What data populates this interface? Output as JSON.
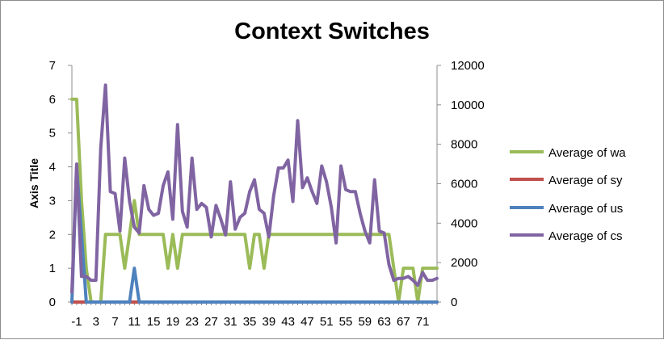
{
  "chart_data": {
    "type": "line",
    "title": "Context Switches",
    "ylabel": "Axis Title",
    "ylim": [
      0,
      7
    ],
    "y2lim": [
      0,
      12000
    ],
    "yticks": [
      "0",
      "1",
      "2",
      "3",
      "4",
      "5",
      "6",
      "7"
    ],
    "y2ticks": [
      "0",
      "2000",
      "4000",
      "6000",
      "8000",
      "10000",
      "12000"
    ],
    "xlim": [
      -2,
      74
    ],
    "xticks": [
      "-1",
      "3",
      "7",
      "11",
      "15",
      "19",
      "23",
      "27",
      "31",
      "35",
      "39",
      "43",
      "47",
      "51",
      "55",
      "59",
      "63",
      "67",
      "71"
    ],
    "legend_position": "right",
    "series": [
      {
        "name": "Average of wa",
        "color": "#9BBB59",
        "axis": "left",
        "x": [
          -2,
          -1,
          0,
          1,
          2,
          3,
          4,
          5,
          6,
          7,
          8,
          9,
          10,
          11,
          12,
          13,
          14,
          15,
          16,
          17,
          18,
          19,
          20,
          21,
          22,
          23,
          24,
          25,
          26,
          27,
          28,
          29,
          30,
          31,
          32,
          33,
          34,
          35,
          36,
          37,
          38,
          39,
          40,
          41,
          42,
          43,
          44,
          45,
          46,
          47,
          48,
          49,
          50,
          51,
          52,
          53,
          54,
          55,
          56,
          57,
          58,
          59,
          60,
          61,
          62,
          63,
          64,
          65,
          66,
          67,
          68,
          69,
          70,
          71,
          72,
          73,
          74
        ],
        "values": [
          6,
          6,
          3,
          1,
          0,
          0,
          0,
          2,
          2,
          2,
          2,
          1,
          2,
          3,
          2,
          2,
          2,
          2,
          2,
          2,
          1,
          2,
          1,
          2,
          2,
          2,
          2,
          2,
          2,
          2,
          2,
          2,
          2,
          2,
          2,
          2,
          2,
          1,
          2,
          2,
          1,
          2,
          2,
          2,
          2,
          2,
          2,
          2,
          2,
          2,
          2,
          2,
          2,
          2,
          2,
          2,
          2,
          2,
          2,
          2,
          2,
          2,
          2,
          2,
          2,
          2,
          2,
          1,
          0,
          1,
          1,
          1,
          0,
          1,
          1,
          1,
          1
        ]
      },
      {
        "name": "Average of sy",
        "color": "#C0504D",
        "axis": "left",
        "x": [
          -2,
          -1,
          0,
          1,
          2,
          3,
          4,
          5,
          6,
          7,
          8,
          9,
          10,
          11,
          12,
          13,
          14,
          15,
          16,
          17,
          18,
          19,
          20,
          21,
          22,
          23,
          24,
          25,
          26,
          27,
          28,
          29,
          30,
          31,
          32,
          33,
          34,
          35,
          36,
          37,
          38,
          39,
          40,
          41,
          42,
          43,
          44,
          45,
          46,
          47,
          48,
          49,
          50,
          51,
          52,
          53,
          54,
          55,
          56,
          57,
          58,
          59,
          60,
          61,
          62,
          63,
          64,
          65,
          66,
          67,
          68,
          69,
          70,
          71,
          72,
          73,
          74
        ],
        "values": [
          0,
          0,
          0,
          0,
          0,
          0,
          0,
          0,
          0,
          0,
          0,
          0,
          0,
          0,
          0,
          0,
          0,
          0,
          0,
          0,
          0,
          0,
          0,
          0,
          0,
          0,
          0,
          0,
          0,
          0,
          0,
          0,
          0,
          0,
          0,
          0,
          0,
          0,
          0,
          0,
          0,
          0,
          0,
          0,
          0,
          0,
          0,
          0,
          0,
          0,
          0,
          0,
          0,
          0,
          0,
          0,
          0,
          0,
          0,
          0,
          0,
          0,
          0,
          0,
          0,
          0,
          0,
          0,
          0,
          0,
          0,
          0,
          0,
          0,
          0,
          0,
          0
        ]
      },
      {
        "name": "Average of us",
        "color": "#4F81BD",
        "axis": "left",
        "x": [
          -2,
          -1,
          0,
          1,
          2,
          3,
          4,
          5,
          6,
          7,
          8,
          9,
          10,
          11,
          12,
          13,
          14,
          15,
          16,
          17,
          18,
          19,
          20,
          21,
          22,
          23,
          24,
          25,
          26,
          27,
          28,
          29,
          30,
          31,
          32,
          33,
          34,
          35,
          36,
          37,
          38,
          39,
          40,
          41,
          42,
          43,
          44,
          45,
          46,
          47,
          48,
          49,
          50,
          51,
          52,
          53,
          54,
          55,
          56,
          57,
          58,
          59,
          60,
          61,
          62,
          63,
          64,
          65,
          66,
          67,
          68,
          69,
          70,
          71,
          72,
          73,
          74
        ],
        "values": [
          0,
          4,
          2,
          0,
          0,
          0,
          0,
          0,
          0,
          0,
          0,
          0,
          0,
          1,
          0,
          0,
          0,
          0,
          0,
          0,
          0,
          0,
          0,
          0,
          0,
          0,
          0,
          0,
          0,
          0,
          0,
          0,
          0,
          0,
          0,
          0,
          0,
          0,
          0,
          0,
          0,
          0,
          0,
          0,
          0,
          0,
          0,
          0,
          0,
          0,
          0,
          0,
          0,
          0,
          0,
          0,
          0,
          0,
          0,
          0,
          0,
          0,
          0,
          0,
          0,
          0,
          0,
          0,
          0,
          0,
          0,
          0,
          0,
          0,
          0,
          0,
          0
        ]
      },
      {
        "name": "Average of cs",
        "color": "#8064A2",
        "axis": "right",
        "x": [
          -2,
          -1,
          0,
          1,
          2,
          3,
          4,
          5,
          6,
          7,
          8,
          9,
          10,
          11,
          12,
          13,
          14,
          15,
          16,
          17,
          18,
          19,
          20,
          21,
          22,
          23,
          24,
          25,
          26,
          27,
          28,
          29,
          30,
          31,
          32,
          33,
          34,
          35,
          36,
          37,
          38,
          39,
          40,
          41,
          42,
          43,
          44,
          45,
          46,
          47,
          48,
          49,
          50,
          51,
          52,
          53,
          54,
          55,
          56,
          57,
          58,
          59,
          60,
          61,
          62,
          63,
          64,
          65,
          66,
          67,
          68,
          69,
          70,
          71,
          72,
          73,
          74
        ],
        "values": [
          500,
          7000,
          1300,
          1300,
          1100,
          1100,
          7800,
          11000,
          5600,
          5500,
          3600,
          7300,
          5100,
          3800,
          3500,
          5900,
          4700,
          4400,
          4500,
          5900,
          6600,
          4200,
          9000,
          4600,
          3800,
          7300,
          4700,
          5000,
          4800,
          3300,
          4900,
          4200,
          3400,
          6100,
          3700,
          4300,
          4500,
          5600,
          6200,
          4700,
          4500,
          3300,
          5400,
          6800,
          6800,
          7200,
          5100,
          9200,
          5800,
          6300,
          5600,
          5000,
          6900,
          6100,
          4800,
          3000,
          6900,
          5700,
          5600,
          5600,
          4500,
          3600,
          3000,
          6200,
          3600,
          3500,
          1900,
          1100,
          1200,
          1200,
          1300,
          1100,
          850,
          1500,
          1100,
          1100,
          1200
        ]
      }
    ]
  }
}
